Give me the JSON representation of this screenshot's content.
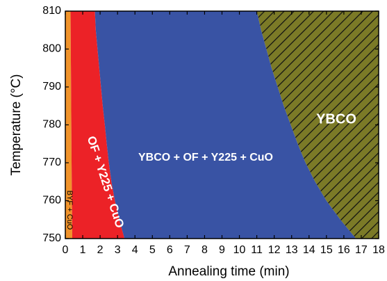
{
  "chart_data": {
    "type": "area",
    "title": "",
    "xlabel": "Annealing time (min)",
    "ylabel": "Temperature (°C)",
    "xlim": [
      0,
      18
    ],
    "ylim": [
      750,
      810
    ],
    "x_ticks": [
      0,
      1,
      2,
      3,
      4,
      5,
      6,
      7,
      8,
      9,
      10,
      11,
      12,
      13,
      14,
      15,
      16,
      17,
      18
    ],
    "y_ticks": [
      750,
      760,
      770,
      780,
      790,
      800,
      810
    ],
    "grid": false,
    "legend": "none",
    "regions": [
      {
        "label": "BYF + CuO",
        "color": "#f0932b",
        "pattern": "solid",
        "right_boundary": [
          {
            "T": 810,
            "t": 0.3
          },
          {
            "T": 790,
            "t": 0.33
          },
          {
            "T": 770,
            "t": 0.36
          },
          {
            "T": 750,
            "t": 0.4
          }
        ]
      },
      {
        "label": "OF + Y225 + CuO",
        "color": "#ec2227",
        "pattern": "solid",
        "right_boundary": [
          {
            "T": 810,
            "t": 1.7
          },
          {
            "T": 805,
            "t": 1.75
          },
          {
            "T": 800,
            "t": 1.85
          },
          {
            "T": 795,
            "t": 1.95
          },
          {
            "T": 790,
            "t": 2.05
          },
          {
            "T": 785,
            "t": 2.15
          },
          {
            "T": 780,
            "t": 2.27
          },
          {
            "T": 775,
            "t": 2.38
          },
          {
            "T": 770,
            "t": 2.5
          },
          {
            "T": 765,
            "t": 2.65
          },
          {
            "T": 760,
            "t": 2.85
          },
          {
            "T": 755,
            "t": 3.1
          },
          {
            "T": 750,
            "t": 3.4
          }
        ]
      },
      {
        "label": "YBCO + OF + Y225 + CuO",
        "color": "#3953a4",
        "pattern": "solid",
        "right_boundary": [
          {
            "T": 810,
            "t": 11.0
          },
          {
            "T": 805,
            "t": 11.25
          },
          {
            "T": 800,
            "t": 11.55
          },
          {
            "T": 795,
            "t": 11.85
          },
          {
            "T": 790,
            "t": 12.2
          },
          {
            "T": 785,
            "t": 12.55
          },
          {
            "T": 780,
            "t": 12.95
          },
          {
            "T": 775,
            "t": 13.35
          },
          {
            "T": 770,
            "t": 13.8
          },
          {
            "T": 765,
            "t": 14.35
          },
          {
            "T": 760,
            "t": 15.0
          },
          {
            "T": 755,
            "t": 15.8
          },
          {
            "T": 750,
            "t": 16.7
          }
        ]
      },
      {
        "label": "YBCO",
        "color": "#7b7a27",
        "pattern": "hatched",
        "hatch_color": "#111111",
        "right_boundary": [
          {
            "T": 810,
            "t": 18
          },
          {
            "T": 750,
            "t": 18
          }
        ]
      }
    ]
  }
}
